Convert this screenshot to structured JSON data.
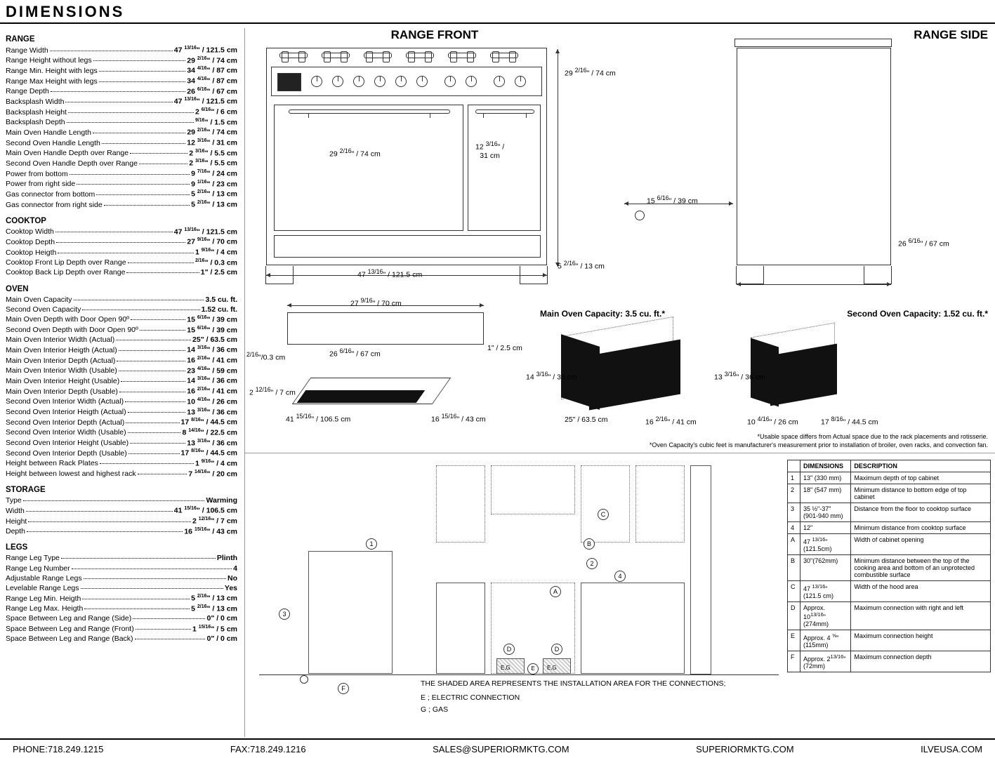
{
  "title": "DIMENSIONS",
  "sections": {
    "range": {
      "head": "RANGE",
      "items": [
        {
          "l": "Range Width",
          "v": "47 <sup>13/16</sup>\" / 121.5 cm"
        },
        {
          "l": "Range Height without legs",
          "v": "29 <sup>2/16</sup>\" / 74 cm"
        },
        {
          "l": "Range Min. Height with legs",
          "v": "34 <sup>4/16</sup>\" / 87 cm"
        },
        {
          "l": "Range Max Height with legs",
          "v": "34 <sup>4/16</sup>\" / 87 cm"
        },
        {
          "l": "Range Depth",
          "v": "26 <sup>6/16</sup>\" / 67 cm"
        },
        {
          "l": "Backsplash Width",
          "v": "47 <sup>13/16</sup>\" / 121.5 cm"
        },
        {
          "l": "Backsplash Height",
          "v": "2 <sup>6/16</sup>\" / 6 cm"
        },
        {
          "l": "Backsplash Depth",
          "v": "<sup>9/16</sup>\" / 1.5 cm"
        },
        {
          "l": "Main Oven Handle Length",
          "v": "29 <sup>2/16</sup>\" / 74 cm"
        },
        {
          "l": "Second Oven Handle Length",
          "v": "12 <sup>3/16</sup>\" / 31 cm"
        },
        {
          "l": "Main Oven Handle Depth over Range",
          "v": "2 <sup>3/16</sup>\" /  5.5 cm"
        },
        {
          "l": "Second Oven Handle Depth over Range",
          "v": "2 <sup>3/16</sup>\" /  5.5 cm"
        },
        {
          "l": "Power from bottom",
          "v": "9 <sup>7/16</sup>\" / 24 cm"
        },
        {
          "l": "Power from right side",
          "v": "9 <sup>1/16</sup>\" / 23 cm"
        },
        {
          "l": "Gas connector from bottom",
          "v": "5 <sup>2/16</sup>\" / 13 cm"
        },
        {
          "l": "Gas connector from right side",
          "v": "5 <sup>2/16</sup>\" / 13 cm"
        }
      ]
    },
    "cooktop": {
      "head": "COOKTOP",
      "items": [
        {
          "l": "Cooktop Width",
          "v": "47 <sup>13/16</sup>\" / 121.5 cm"
        },
        {
          "l": "Cooktop Depth",
          "v": "27 <sup>9/16</sup>\" / 70 cm"
        },
        {
          "l": "Cooktop Heigth",
          "v": "1 <sup>9/16</sup>\" / 4 cm"
        },
        {
          "l": "Cooktop Front Lip Depth over Range",
          "v": "<sup>2/16</sup>\" / 0.3 cm"
        },
        {
          "l": "Cooktop Back Lip Depth over Range",
          "v": "1\" / 2.5 cm"
        }
      ]
    },
    "oven": {
      "head": "OVEN",
      "items": [
        {
          "l": "Main Oven Capacity",
          "v": "3.5 cu. ft."
        },
        {
          "l": "Second Oven Capacity",
          "v": "1.52 cu. ft."
        },
        {
          "l": "Main Oven Depth with Door Open 90º",
          "v": "15 <sup>6/16</sup>\" / 39 cm"
        },
        {
          "l": "Second Oven Depth with Door Open 90º",
          "v": "15 <sup>6/16</sup>\" / 39 cm"
        },
        {
          "l": "Main Oven Interior Width (Actual)",
          "v": "25\" / 63.5 cm"
        },
        {
          "l": "Main Oven Interior Heigth (Actual)",
          "v": "14 <sup>3/16</sup>\" / 36 cm"
        },
        {
          "l": "Main Oven Interior Depth (Actual)",
          "v": "16 <sup>2/16</sup>\" / 41 cm"
        },
        {
          "l": "Main Oven Interior Width (Usable)",
          "v": "23 <sup>4/16</sup>\" / 59 cm"
        },
        {
          "l": "Main Oven Interior Height (Usable)",
          "v": "14 <sup>3/16</sup>\" / 36 cm"
        },
        {
          "l": "Main Oven Interior Depth (Usable)",
          "v": "16 <sup>2/16</sup>\" / 41 cm"
        },
        {
          "l": "Second Oven Interior Width (Actual)",
          "v": "10 <sup>4/16</sup>\" / 26 cm"
        },
        {
          "l": "Second Oven Interior Heigth (Actual)",
          "v": "13 <sup>3/16</sup>\" / 36 cm"
        },
        {
          "l": "Second Oven Interior Depth (Actual)",
          "v": "17 <sup>8/16</sup>\" / 44.5 cm"
        },
        {
          "l": "Second Oven Interior Width (Usable)",
          "v": "8 <sup>14/16</sup>\" / 22.5 cm"
        },
        {
          "l": "Second Oven Interior Height (Usable)",
          "v": "13 <sup>3/16</sup>\" / 36 cm"
        },
        {
          "l": "Second Oven Interior Depth (Usable)",
          "v": "17 <sup>8/16</sup>\" / 44.5 cm"
        },
        {
          "l": "Height between Rack Plates",
          "v": "1 <sup>9/16</sup>\" / 4 cm"
        },
        {
          "l": "Height between lowest and highest rack",
          "v": "7 <sup>14/16</sup>\" / 20 cm"
        }
      ]
    },
    "storage": {
      "head": "STORAGE",
      "items": [
        {
          "l": "Type",
          "v": "Warming"
        },
        {
          "l": "Width",
          "v": "41 <sup>15/16</sup>\" / 106.5 cm"
        },
        {
          "l": "Height",
          "v": "2 <sup>12/16</sup>\" / 7 cm"
        },
        {
          "l": "Depth",
          "v": "16 <sup>15/16</sup>\" / 43 cm"
        }
      ]
    },
    "legs": {
      "head": "LEGS",
      "items": [
        {
          "l": "Range Leg Type",
          "v": "Plinth"
        },
        {
          "l": "Range Leg Number",
          "v": "4"
        },
        {
          "l": "Adjustable Range Legs",
          "v": "No"
        },
        {
          "l": "Levelable Range Legs",
          "v": "Yes"
        },
        {
          "l": "Range Leg Min. Heigth",
          "v": "5 <sup>2/16</sup>\" / 13 cm"
        },
        {
          "l": "Range Leg Max. Heigth",
          "v": "5 <sup>2/16</sup>\" / 13 cm"
        },
        {
          "l": "Space Between Leg and Range (Side)",
          "v": "0\" / 0 cm"
        },
        {
          "l": "Space Between Leg and Range (Front)",
          "v": "1 <sup>15/16</sup>\" / 5 cm"
        },
        {
          "l": "Space Between Leg and Range (Back)",
          "v": "0\" / 0 cm"
        }
      ]
    }
  },
  "diagrams": {
    "front_title": "RANGE FRONT",
    "side_title": "RANGE SIDE",
    "d_74": "29 <sup>2/16</sup>\" / 74 cm",
    "d_31": "12 <sup>3/16</sup>\" /<br>31 cm",
    "d_121": "47 <sup>13/16</sup>\" / 121.5 cm",
    "d_13": "5 <sup>2/16</sup>\" / 13 cm",
    "d_39": "15 <sup>6/16</sup>\" / 39 cm",
    "d_67": "26 <sup>6/16</sup>\" / 67 cm",
    "d_70": "27 <sup>9/16</sup>\" / 70 cm",
    "d_25": "1\" / 2.5 cm",
    "d_03": "<sup>2/16</sup>\"/0.3 cm",
    "d_7": "2 <sup>12/16</sup>\" / 7 cm",
    "d_106": "41 <sup>15/16</sup>\" / 106.5 cm",
    "d_43": "16 <sup>15/16</sup>\" / 43 cm",
    "d_36a": "14 <sup>3/16</sup>\" / 36 cm",
    "d_36b": "13 <sup>3/16</sup>\" / 36 cm",
    "d_635": "25\" / 63.5 cm",
    "d_41": "16 <sup>2/16</sup>\" / 41 cm",
    "d_26": "10 <sup>4/16</sup>\" / 26 cm",
    "d_445": "17 <sup>8/16</sup>\" / 44.5 cm",
    "cap_main": "Main Oven Capacity: 3.5 cu. ft.*",
    "cap_second": "Second Oven Capacity: 1.52 cu. ft.*",
    "note1": "*Usable space differs from Actual space due to the rack placements and rotisserie.",
    "note2": "*Oven Capacity's cubic feet is manufacturer's measurement prior to installation of broiler, oven racks, and convection fan.",
    "install_note": "THE SHADED AREA REPRESENTS THE INSTALLATION AREA FOR THE CONNECTIONS;",
    "conn_e": "E ; ELECTRIC CONNECTION",
    "conn_g": "G ; GAS"
  },
  "install_table": {
    "h1": "DIMENSIONS",
    "h2": "DESCRIPTION",
    "rows": [
      {
        "k": "1",
        "d": "13\" (330 mm)",
        "t": "Maximum depth of top cabinet"
      },
      {
        "k": "2",
        "d": "18\" (547 mm)",
        "t": "Minimum distance to bottom edge of top cabinet"
      },
      {
        "k": "3",
        "d": "35 ½\"-37\"<br>(901-940 mm)",
        "t": "Distance from the floor to cooktop surface"
      },
      {
        "k": "4",
        "d": "12\"",
        "t": "Minimum distance from cooktop surface"
      },
      {
        "k": "A",
        "d": "47 <sup>13/16</sup>\"(121.5cm)",
        "t": "Width of cabinet opening"
      },
      {
        "k": "B",
        "d": "30\"(762mm)",
        "t": "Minimum distance between the top of the cooking area and bottom of an unprotected combustible surface"
      },
      {
        "k": "C",
        "d": "47 <sup>13/16</sup>\"<br>(121.5 cm)",
        "t": "Width of the hood area"
      },
      {
        "k": "D",
        "d": "Approx. 10<sup>13/16</sup>\"<br>(274mm)",
        "t": "Maximum connection with right and left"
      },
      {
        "k": "E",
        "d": "Approx. 4 <sup>⅝</sup>\"<br>(115mm)",
        "t": "Maximum connection height"
      },
      {
        "k": "F",
        "d": "Approx. 2<sup>13/16</sup>\"<br>(72mm)",
        "t": "Maximum connection depth"
      }
    ]
  },
  "footer": {
    "phone": "PHONE:718.249.1215",
    "fax": "FAX:718.249.1216",
    "email": "SALES@SUPERIORMKTG.COM",
    "web1": "SUPERIORMKTG.COM",
    "web2": "ILVEUSA.COM"
  }
}
